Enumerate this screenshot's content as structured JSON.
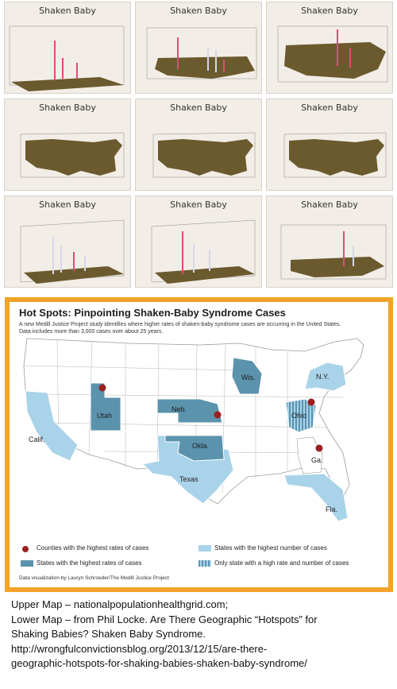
{
  "thumbnails": {
    "title": "Shaken Baby",
    "items": [
      {
        "view": "tilted-low"
      },
      {
        "view": "tilted-mid"
      },
      {
        "view": "tilted-high"
      },
      {
        "view": "top-down"
      },
      {
        "view": "top-down"
      },
      {
        "view": "top-down"
      },
      {
        "view": "bars-front"
      },
      {
        "view": "bars-front"
      },
      {
        "view": "bars-side"
      }
    ]
  },
  "hotspot": {
    "title": "Hot Spots: Pinpointing Shaken-Baby Syndrome Cases",
    "description": "A new Medill Justice Project study identifies where higher rates of shaken-baby syndrome cases are occurring in the United States. Data includes more than 3,000 cases over about 25 years.",
    "states": {
      "wa": "",
      "wis": "Wis.",
      "ny": "N.Y.",
      "utah": "Utah",
      "neb": "Neb.",
      "ohio": "Ohio",
      "calif": "Calif.",
      "okla": "Okla.",
      "texas": "Texas",
      "ga": "Ga.",
      "fla": "Fla."
    },
    "legend": {
      "counties": "Counties with the highest rates of cases",
      "states_rates": "States with the highest rates of cases",
      "states_number": "States with the highest number of cases",
      "only_state": "Only state with a high rate and number of cases"
    },
    "credit": "Data visualization by Lauryn Schroeder/The Medill Justice Project",
    "colors": {
      "highest_rate": "#5b93ad",
      "highest_number": "#a9d3e9",
      "county_dot": "#9c1f1f",
      "frame": "#f3a22a"
    }
  },
  "caption": {
    "line1": "Upper Map – nationalpopulationhealthgrid.com;",
    "line2": "Lower Map – from Phil Locke.  Are There Geographic “Hotspots” for",
    "line3": "Shaking Babies? Shaken Baby Syndrome.",
    "line4": "http://wrongfulconvictionsblog.org/2013/12/15/are-there-",
    "line5": "geographic-hotspots-for-shaking-babies-shaken-baby-syndrome/"
  }
}
